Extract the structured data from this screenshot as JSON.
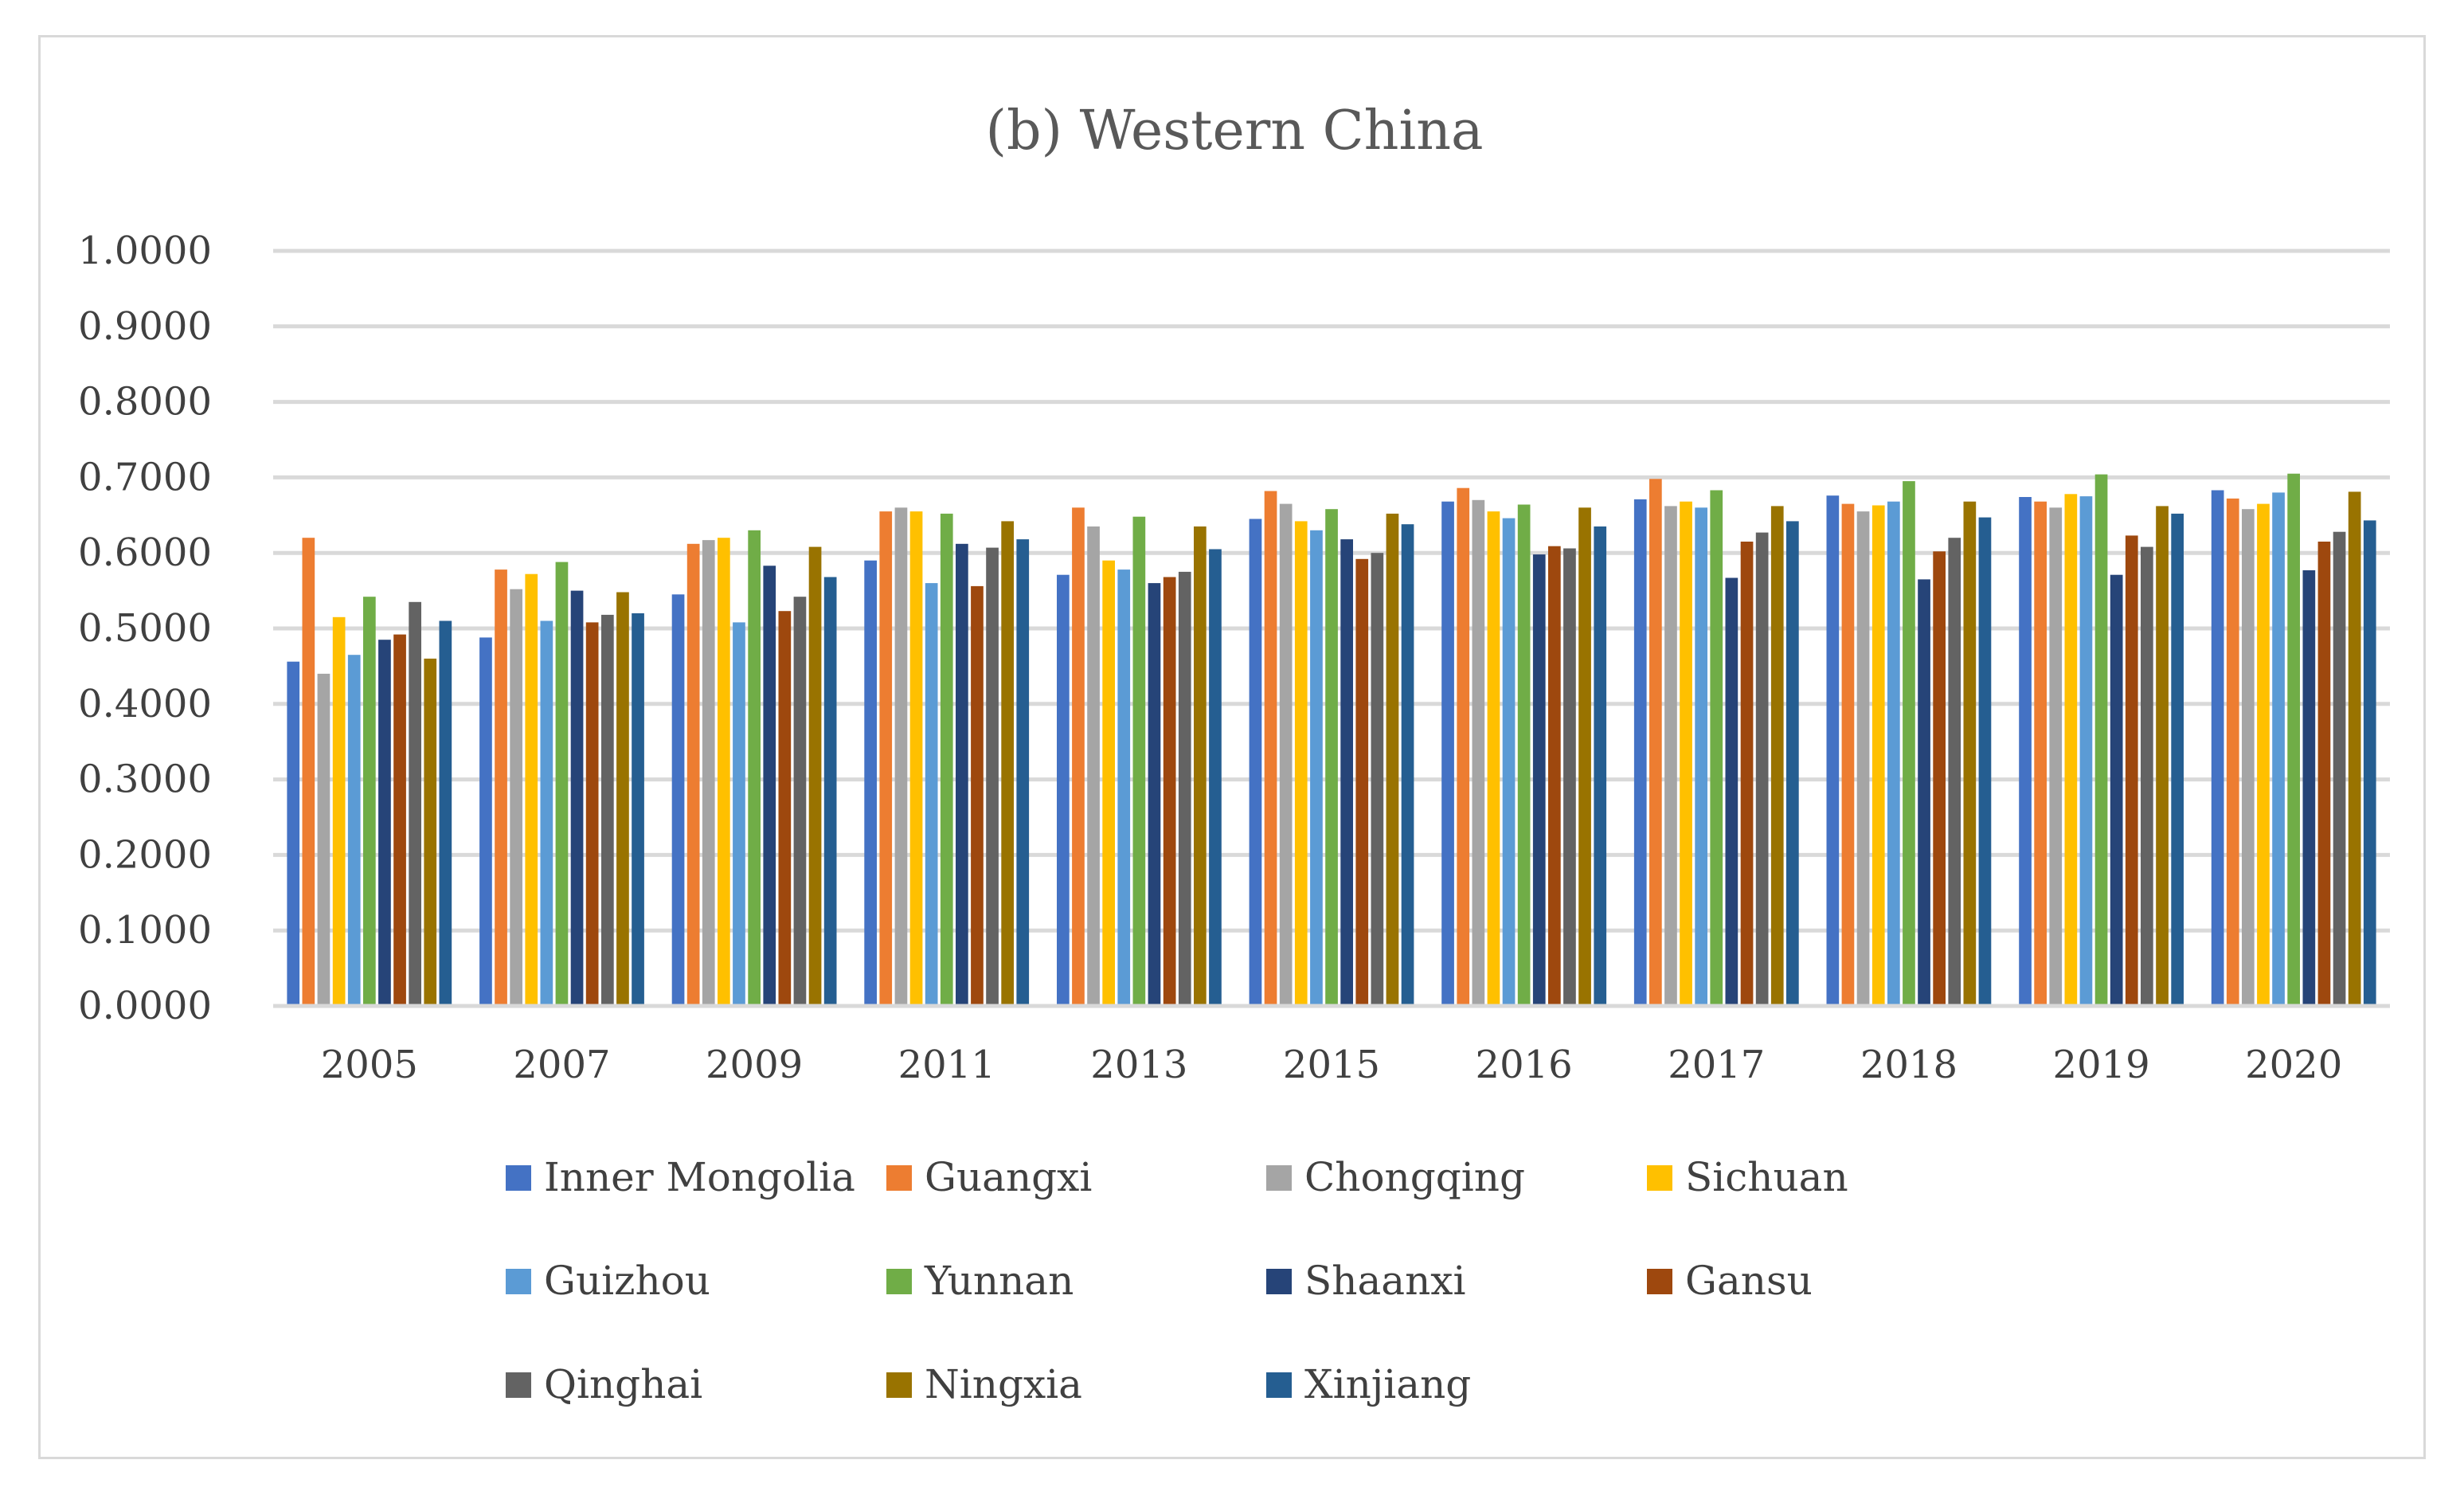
{
  "chart_data": {
    "type": "bar",
    "title": "(b) Western China",
    "xlabel": "",
    "ylabel": "",
    "ylim": [
      0,
      1
    ],
    "yticks": [
      "0.0000",
      "0.1000",
      "0.2000",
      "0.3000",
      "0.4000",
      "0.5000",
      "0.6000",
      "0.7000",
      "0.8000",
      "0.9000",
      "1.0000"
    ],
    "grid": true,
    "legend_position": "bottom",
    "categories": [
      "2005",
      "2007",
      "2009",
      "2011",
      "2013",
      "2015",
      "2016",
      "2017",
      "2018",
      "2019",
      "2020"
    ],
    "series": [
      {
        "name": "Inner Mongolia",
        "color": "#4472c4",
        "values": [
          0.456,
          0.488,
          0.545,
          0.59,
          0.571,
          0.645,
          0.668,
          0.671,
          0.676,
          0.674,
          0.683
        ]
      },
      {
        "name": "Guangxi",
        "color": "#ed7d31",
        "values": [
          0.62,
          0.578,
          0.612,
          0.655,
          0.66,
          0.682,
          0.686,
          0.698,
          0.665,
          0.668,
          0.672
        ]
      },
      {
        "name": "Chongqing",
        "color": "#a5a5a5",
        "values": [
          0.44,
          0.552,
          0.617,
          0.66,
          0.635,
          0.665,
          0.67,
          0.662,
          0.655,
          0.66,
          0.658
        ]
      },
      {
        "name": "Sichuan",
        "color": "#ffc000",
        "values": [
          0.515,
          0.572,
          0.62,
          0.655,
          0.59,
          0.642,
          0.655,
          0.668,
          0.663,
          0.678,
          0.665
        ]
      },
      {
        "name": "Guizhou",
        "color": "#5b9bd5",
        "values": [
          0.465,
          0.51,
          0.508,
          0.56,
          0.578,
          0.63,
          0.646,
          0.66,
          0.668,
          0.675,
          0.68
        ]
      },
      {
        "name": "Yunnan",
        "color": "#70ad47",
        "values": [
          0.542,
          0.588,
          0.63,
          0.652,
          0.648,
          0.658,
          0.664,
          0.683,
          0.695,
          0.704,
          0.705
        ]
      },
      {
        "name": "Shaanxi",
        "color": "#264478",
        "values": [
          0.485,
          0.55,
          0.583,
          0.612,
          0.56,
          0.618,
          0.598,
          0.567,
          0.565,
          0.571,
          0.577
        ]
      },
      {
        "name": "Gansu",
        "color": "#9e480e",
        "values": [
          0.492,
          0.508,
          0.523,
          0.556,
          0.568,
          0.592,
          0.609,
          0.615,
          0.602,
          0.623,
          0.615
        ]
      },
      {
        "name": "Qinghai",
        "color": "#636363",
        "values": [
          0.535,
          0.518,
          0.542,
          0.607,
          0.575,
          0.6,
          0.606,
          0.627,
          0.62,
          0.608,
          0.628
        ]
      },
      {
        "name": "Ningxia",
        "color": "#997300",
        "values": [
          0.46,
          0.548,
          0.608,
          0.642,
          0.635,
          0.652,
          0.66,
          0.662,
          0.668,
          0.662,
          0.681
        ]
      },
      {
        "name": "Xinjiang",
        "color": "#255e91",
        "values": [
          0.51,
          0.52,
          0.568,
          0.618,
          0.605,
          0.638,
          0.635,
          0.642,
          0.647,
          0.652,
          0.643
        ]
      }
    ]
  }
}
